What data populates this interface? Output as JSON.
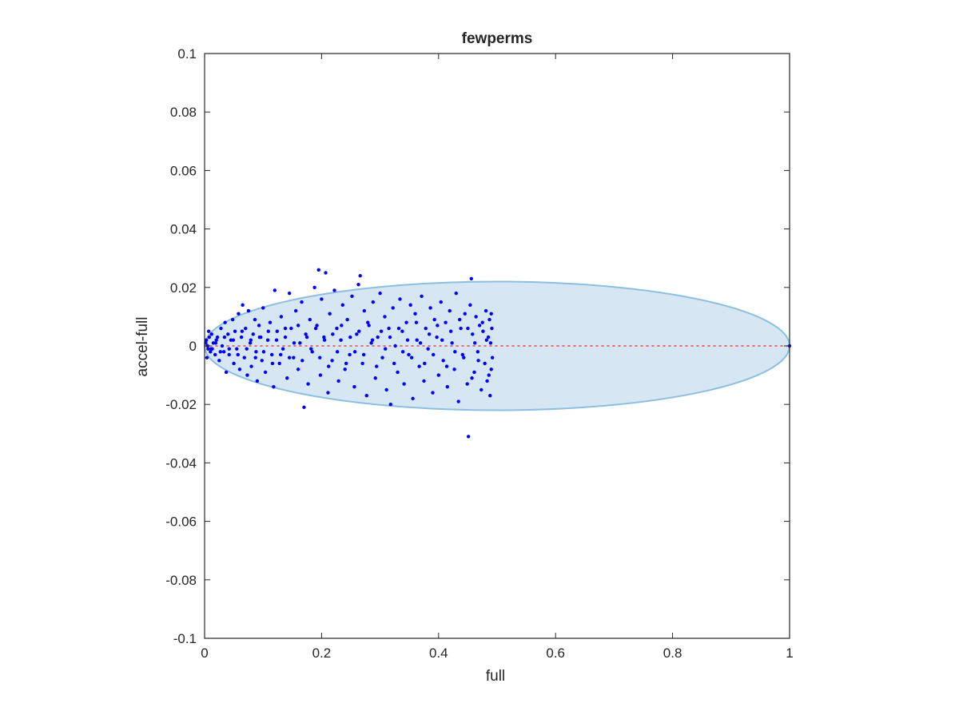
{
  "chart_data": {
    "type": "scatter",
    "title": "fewperms",
    "xlabel": "full",
    "ylabel": "accel-full",
    "xlim": [
      0,
      1
    ],
    "ylim": [
      -0.1,
      0.1
    ],
    "x_ticks": [
      0,
      0.2,
      0.4,
      0.6,
      0.8,
      1
    ],
    "x_tick_labels": [
      "0",
      "0.2",
      "0.4",
      "0.6",
      "0.8",
      "1"
    ],
    "y_ticks": [
      0.1,
      0.08,
      0.06,
      0.04,
      0.02,
      0,
      -0.02,
      -0.04,
      -0.06,
      -0.08,
      -0.1
    ],
    "y_tick_labels": [
      "0.1",
      "0.08",
      "0.06",
      "0.04",
      "0.02",
      "0",
      "-0.02",
      "-0.04",
      "-0.06",
      "-0.08",
      "-0.1"
    ],
    "grid": false,
    "reference_line": {
      "x": [
        0,
        1
      ],
      "y": [
        0,
        0
      ],
      "color": "#e64a4a",
      "style": "dotted"
    },
    "ellipse_region": {
      "x_range": [
        0,
        1
      ],
      "y_halfwidth": 0.022,
      "fill": "#d6e6f2",
      "stroke": "#8cbfdf"
    },
    "series": [
      {
        "color": "#0000ff",
        "points": [
          [
            0.003,
            0.002
          ],
          [
            0.006,
            -0.001
          ],
          [
            0.008,
            0.003
          ],
          [
            0.005,
            0.0
          ],
          [
            0.01,
            -0.002
          ],
          [
            0.012,
            0.004
          ],
          [
            0.015,
            0.001
          ],
          [
            0.018,
            -0.003
          ],
          [
            0.02,
            0.002
          ],
          [
            0.004,
            -0.004
          ],
          [
            0.007,
            0.005
          ],
          [
            0.013,
            -0.001
          ],
          [
            0.022,
            0.003
          ],
          [
            0.025,
            -0.005
          ],
          [
            0.028,
            0.006
          ],
          [
            0.03,
            0.0
          ],
          [
            0.033,
            -0.002
          ],
          [
            0.035,
            0.008
          ],
          [
            0.037,
            -0.009
          ],
          [
            0.04,
            0.004
          ],
          [
            0.042,
            -0.003
          ],
          [
            0.045,
            0.002
          ],
          [
            0.048,
            0.009
          ],
          [
            0.05,
            -0.006
          ],
          [
            0.052,
            0.005
          ],
          [
            0.055,
            -0.001
          ],
          [
            0.058,
            0.011
          ],
          [
            0.06,
            -0.008
          ],
          [
            0.063,
            0.003
          ],
          [
            0.065,
            0.014
          ],
          [
            0.068,
            -0.004
          ],
          [
            0.07,
            0.006
          ],
          [
            0.073,
            -0.01
          ],
          [
            0.075,
            0.012
          ],
          [
            0.078,
            0.001
          ],
          [
            0.08,
            -0.007
          ],
          [
            0.083,
            0.004
          ],
          [
            0.086,
            0.009
          ],
          [
            0.088,
            -0.002
          ],
          [
            0.09,
            -0.012
          ],
          [
            0.093,
            0.007
          ],
          [
            0.096,
            0.003
          ],
          [
            0.098,
            -0.005
          ],
          [
            0.1,
            0.013
          ],
          [
            0.104,
            -0.009
          ],
          [
            0.108,
            0.002
          ],
          [
            0.112,
            0.008
          ],
          [
            0.115,
            -0.003
          ],
          [
            0.118,
            -0.014
          ],
          [
            0.12,
            0.019
          ],
          [
            0.124,
            0.005
          ],
          [
            0.128,
            -0.006
          ],
          [
            0.131,
            0.01
          ],
          [
            0.134,
            -0.001
          ],
          [
            0.138,
            0.003
          ],
          [
            0.141,
            -0.011
          ],
          [
            0.145,
            0.018
          ],
          [
            0.148,
            0.006
          ],
          [
            0.152,
            -0.004
          ],
          [
            0.156,
            0.012
          ],
          [
            0.16,
            -0.008
          ],
          [
            0.163,
            0.001
          ],
          [
            0.166,
            0.015
          ],
          [
            0.17,
            -0.021
          ],
          [
            0.173,
            0.004
          ],
          [
            0.177,
            -0.013
          ],
          [
            0.18,
            0.009
          ],
          [
            0.184,
            -0.002
          ],
          [
            0.188,
            0.02
          ],
          [
            0.192,
            0.007
          ],
          [
            0.195,
            0.026
          ],
          [
            0.198,
            -0.01
          ],
          [
            0.2,
            0.016
          ],
          [
            0.204,
            0.003
          ],
          [
            0.207,
            0.025
          ],
          [
            0.211,
            -0.016
          ],
          [
            0.214,
            0.011
          ],
          [
            0.218,
            -0.005
          ],
          [
            0.222,
            0.019
          ],
          [
            0.226,
            0.006
          ],
          [
            0.229,
            -0.012
          ],
          [
            0.233,
            0.002
          ],
          [
            0.236,
            0.014
          ],
          [
            0.24,
            -0.008
          ],
          [
            0.244,
            0.009
          ],
          [
            0.248,
            -0.003
          ],
          [
            0.252,
            0.017
          ],
          [
            0.256,
            -0.014
          ],
          [
            0.26,
            0.004
          ],
          [
            0.263,
            0.021
          ],
          [
            0.266,
            0.024
          ],
          [
            0.27,
            -0.006
          ],
          [
            0.273,
            0.012
          ],
          [
            0.277,
            -0.017
          ],
          [
            0.281,
            0.007
          ],
          [
            0.285,
            0.001
          ],
          [
            0.288,
            0.015
          ],
          [
            0.292,
            -0.011
          ],
          [
            0.296,
            0.003
          ],
          [
            0.3,
            0.018
          ],
          [
            0.304,
            -0.004
          ],
          [
            0.308,
            0.01
          ],
          [
            0.311,
            -0.015
          ],
          [
            0.315,
            0.006
          ],
          [
            0.318,
            -0.02
          ],
          [
            0.322,
            0.013
          ],
          [
            0.326,
            0.0
          ],
          [
            0.33,
            -0.009
          ],
          [
            0.334,
            0.016
          ],
          [
            0.338,
            0.005
          ],
          [
            0.341,
            -0.013
          ],
          [
            0.345,
            0.008
          ],
          [
            0.349,
            -0.003
          ],
          [
            0.352,
            0.014
          ],
          [
            0.356,
            -0.018
          ],
          [
            0.36,
            0.011
          ],
          [
            0.363,
            0.002
          ],
          [
            0.367,
            -0.007
          ],
          [
            0.371,
            0.017
          ],
          [
            0.375,
            -0.012
          ],
          [
            0.378,
            0.006
          ],
          [
            0.382,
            -0.001
          ],
          [
            0.386,
            0.013
          ],
          [
            0.39,
            -0.016
          ],
          [
            0.393,
            0.009
          ],
          [
            0.397,
            0.003
          ],
          [
            0.4,
            -0.01
          ],
          [
            0.404,
            0.015
          ],
          [
            0.408,
            -0.005
          ],
          [
            0.412,
            0.008
          ],
          [
            0.415,
            -0.014
          ],
          [
            0.419,
            0.012
          ],
          [
            0.423,
            0.001
          ],
          [
            0.427,
            -0.008
          ],
          [
            0.43,
            0.018
          ],
          [
            0.434,
            -0.019
          ],
          [
            0.438,
            0.006
          ],
          [
            0.441,
            -0.003
          ],
          [
            0.445,
            0.011
          ],
          [
            0.449,
            -0.013
          ],
          [
            0.451,
            -0.031
          ],
          [
            0.454,
            0.014
          ],
          [
            0.456,
            0.023
          ],
          [
            0.458,
            0.004
          ],
          [
            0.461,
            -0.009
          ],
          [
            0.464,
            0.01
          ],
          [
            0.467,
            -0.002
          ],
          [
            0.47,
            0.007
          ],
          [
            0.473,
            -0.015
          ],
          [
            0.476,
            0.005
          ],
          [
            0.479,
            -0.006
          ],
          [
            0.481,
            0.012
          ],
          [
            0.483,
            -0.012
          ],
          [
            0.485,
            0.003
          ],
          [
            0.487,
            0.009
          ],
          [
            0.488,
            -0.017
          ],
          [
            0.489,
            0.001
          ],
          [
            0.49,
            -0.008
          ],
          [
            0.491,
            0.006
          ],
          [
            0.492,
            -0.004
          ],
          [
            0.49,
            0.011
          ],
          [
            0.486,
            -0.01
          ],
          [
            0.482,
            0.002
          ],
          [
            0.475,
            0.008
          ],
          [
            0.468,
            -0.005
          ],
          [
            0.462,
            0.001
          ],
          [
            0.457,
            -0.011
          ],
          [
            0.45,
            0.006
          ],
          [
            0.443,
            -0.004
          ],
          [
            0.436,
            0.009
          ],
          [
            0.428,
            -0.002
          ],
          [
            0.421,
            0.005
          ],
          [
            0.414,
            -0.007
          ],
          [
            0.406,
            0.002
          ],
          [
            0.398,
            0.007
          ],
          [
            0.391,
            -0.003
          ],
          [
            0.384,
            0.004
          ],
          [
            0.376,
            -0.006
          ],
          [
            0.369,
            0.001
          ],
          [
            0.362,
            0.008
          ],
          [
            0.354,
            -0.004
          ],
          [
            0.347,
            0.002
          ],
          [
            0.339,
            -0.002
          ],
          [
            0.332,
            0.006
          ],
          [
            0.324,
            -0.006
          ],
          [
            0.317,
            0.003
          ],
          [
            0.309,
            -0.001
          ],
          [
            0.302,
            0.005
          ],
          [
            0.294,
            -0.007
          ],
          [
            0.287,
            0.002
          ],
          [
            0.279,
            0.008
          ],
          [
            0.272,
            -0.003
          ],
          [
            0.264,
            0.005
          ],
          [
            0.257,
            -0.002
          ],
          [
            0.249,
            0.003
          ],
          [
            0.242,
            -0.006
          ],
          [
            0.234,
            0.007
          ],
          [
            0.227,
            -0.002
          ],
          [
            0.219,
            0.004
          ],
          [
            0.212,
            -0.007
          ],
          [
            0.205,
            0.002
          ],
          [
            0.197,
            -0.004
          ],
          [
            0.19,
            0.006
          ],
          [
            0.182,
            -0.001
          ],
          [
            0.175,
            0.003
          ],
          [
            0.167,
            -0.005
          ],
          [
            0.16,
            0.007
          ],
          [
            0.153,
            0.001
          ],
          [
            0.145,
            -0.004
          ],
          [
            0.138,
            0.006
          ],
          [
            0.13,
            -0.003
          ],
          [
            0.123,
            0.002
          ],
          [
            0.116,
            -0.006
          ],
          [
            0.109,
            0.005
          ],
          [
            0.101,
            -0.002
          ],
          [
            0.094,
            0.003
          ],
          [
            0.087,
            -0.004
          ],
          [
            0.079,
            0.002
          ],
          [
            0.072,
            -0.001
          ],
          [
            0.064,
            0.005
          ],
          [
            0.057,
            -0.003
          ],
          [
            0.049,
            0.002
          ],
          [
            0.042,
            -0.001
          ],
          [
            0.034,
            0.003
          ],
          [
            0.027,
            -0.002
          ],
          [
            0.019,
            0.001
          ],
          [
            0.011,
            -0.001
          ],
          [
            0.002,
            0.001
          ],
          [
            1.0,
            0.0
          ]
        ]
      }
    ]
  }
}
